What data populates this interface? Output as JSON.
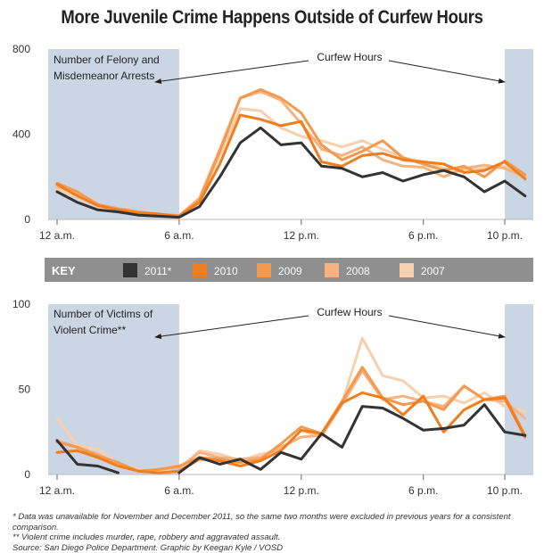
{
  "title": "More Juvenile Crime Happens Outside of Curfew Hours",
  "colors": {
    "curfew_shade": "#cbd6e5",
    "key_bar": "#8f8f8f",
    "2011*": "#333333",
    "2010": "#f07d1e",
    "2009": "#f4994d",
    "2008": "#f6b27f",
    "2007": "#f9cfac"
  },
  "key": {
    "title": "KEY",
    "entries": [
      "2011*",
      "2010",
      "2009",
      "2008",
      "2007"
    ]
  },
  "chart_data": [
    {
      "type": "line",
      "panel_label": [
        "Number of Felony and",
        "Misdemeanor Arrests"
      ],
      "curfew_label": "Curfew Hours",
      "xtick_labels": [
        "12 a.m.",
        "6 a.m.",
        "12 p.m.",
        "6 p.m.",
        "10 p.m."
      ],
      "xtick_hours": [
        0,
        6,
        12,
        18,
        22
      ],
      "curfew_ranges": [
        [
          0,
          6
        ],
        [
          22,
          24
        ]
      ],
      "ylim": [
        0,
        800
      ],
      "yticks": [
        0,
        400,
        800
      ],
      "x": [
        0,
        1,
        2,
        3,
        4,
        5,
        6,
        7,
        8,
        9,
        10,
        11,
        12,
        13,
        14,
        15,
        16,
        17,
        18,
        19,
        20,
        21,
        22,
        23
      ],
      "series": [
        {
          "name": "2007",
          "values": [
            140,
            105,
            60,
            45,
            30,
            20,
            15,
            95,
            300,
            520,
            510,
            430,
            390,
            370,
            340,
            370,
            330,
            290,
            270,
            240,
            230,
            240,
            250,
            210
          ]
        },
        {
          "name": "2008",
          "values": [
            155,
            120,
            70,
            50,
            35,
            25,
            18,
            100,
            330,
            570,
            600,
            560,
            450,
            330,
            300,
            340,
            280,
            250,
            245,
            200,
            240,
            255,
            240,
            200
          ]
        },
        {
          "name": "2009",
          "values": [
            170,
            130,
            70,
            50,
            35,
            25,
            15,
            90,
            320,
            570,
            610,
            570,
            500,
            350,
            280,
            320,
            370,
            290,
            260,
            230,
            250,
            200,
            275,
            210
          ]
        },
        {
          "name": "2010",
          "values": [
            165,
            110,
            65,
            45,
            30,
            25,
            15,
            80,
            260,
            490,
            470,
            440,
            460,
            270,
            250,
            300,
            310,
            280,
            270,
            260,
            220,
            230,
            270,
            190
          ]
        },
        {
          "name": "2011*",
          "values": [
            130,
            80,
            45,
            35,
            20,
            15,
            10,
            60,
            200,
            360,
            430,
            350,
            360,
            250,
            240,
            200,
            220,
            180,
            210,
            230,
            200,
            130,
            180,
            110
          ]
        }
      ]
    },
    {
      "type": "line",
      "panel_label": [
        "Number of Victims of",
        "Violent Crime**"
      ],
      "curfew_label": "Curfew Hours",
      "xtick_labels": [
        "12 a.m.",
        "6 a.m.",
        "12 p.m.",
        "6 p.m.",
        "10 p.m."
      ],
      "xtick_hours": [
        0,
        6,
        12,
        18,
        22
      ],
      "curfew_ranges": [
        [
          0,
          6
        ],
        [
          22,
          24
        ]
      ],
      "ylim": [
        0,
        100
      ],
      "yticks": [
        0,
        50,
        100
      ],
      "x": [
        0,
        1,
        2,
        3,
        4,
        5,
        6,
        7,
        8,
        9,
        10,
        11,
        12,
        13,
        14,
        15,
        16,
        17,
        18,
        19,
        20,
        21,
        22,
        23
      ],
      "series": [
        {
          "name": "2007",
          "values": [
            33,
            17,
            15,
            6,
            3,
            2,
            2,
            14,
            12,
            8,
            12,
            14,
            26,
            22,
            42,
            80,
            58,
            55,
            45,
            46,
            42,
            48,
            40,
            37
          ]
        },
        {
          "name": "2008",
          "values": [
            20,
            16,
            12,
            6,
            2,
            3,
            4,
            13,
            10,
            9,
            10,
            16,
            22,
            23,
            41,
            61,
            44,
            46,
            43,
            40,
            52,
            44,
            43,
            33
          ]
        },
        {
          "name": "2009",
          "values": [
            19,
            16,
            11,
            7,
            2,
            3,
            5,
            10,
            9,
            7,
            9,
            18,
            28,
            24,
            43,
            63,
            45,
            41,
            43,
            38,
            52,
            44,
            46,
            23
          ]
        },
        {
          "name": "2010",
          "values": [
            13,
            14,
            10,
            5,
            2,
            1,
            2,
            9,
            8,
            5,
            8,
            14,
            26,
            24,
            42,
            48,
            45,
            35,
            46,
            25,
            38,
            44,
            45,
            22
          ]
        },
        {
          "name": "2011*",
          "values": [
            20,
            6,
            5,
            1,
            null,
            null,
            1,
            10,
            6,
            9,
            3,
            13,
            9,
            24,
            16,
            40,
            39,
            33,
            26,
            27,
            29,
            41,
            25,
            23
          ]
        }
      ]
    }
  ],
  "footnotes": [
    "* Data was unavailable for November and December 2011, so the same two months were excluded in previous years for a consistent comparison.",
    "** Violent crime includes murder, rape, robbery and aggravated assault.",
    "Source: San Diego Police Department. Graphic by Keegan Kyle / VOSD"
  ]
}
